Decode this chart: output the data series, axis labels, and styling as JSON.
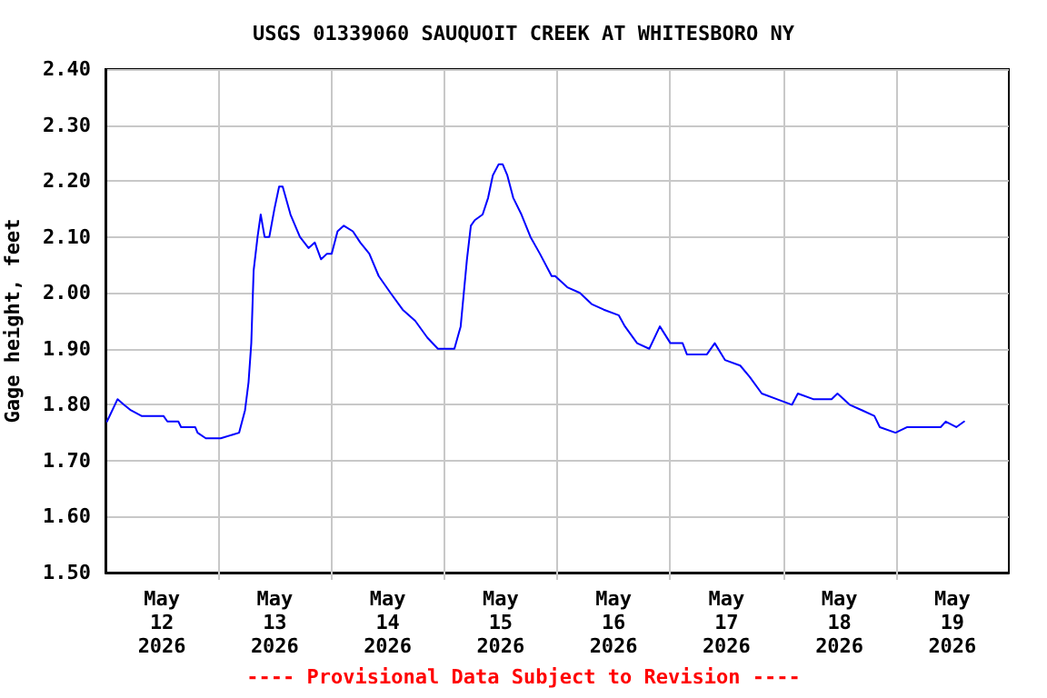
{
  "chart_data": {
    "type": "line",
    "title": "USGS 01339060 SAUQUOIT CREEK AT WHITESBORO NY",
    "ylabel": "Gage height, feet",
    "annotations": [
      "---- Provisional Data Subject to Revision ----"
    ],
    "xlim": [
      "2026-05-12T00:00",
      "2026-05-20T00:00"
    ],
    "xticks": [
      {
        "value": "2026-05-12T12:00",
        "label": "May\n12\n2026"
      },
      {
        "value": "2026-05-13T00:00",
        "label": null
      },
      {
        "value": "2026-05-13T12:00",
        "label": "May\n13\n2026"
      },
      {
        "value": "2026-05-14T00:00",
        "label": null
      },
      {
        "value": "2026-05-14T12:00",
        "label": "May\n14\n2026"
      },
      {
        "value": "2026-05-15T00:00",
        "label": null
      },
      {
        "value": "2026-05-15T12:00",
        "label": "May\n15\n2026"
      },
      {
        "value": "2026-05-16T00:00",
        "label": null
      },
      {
        "value": "2026-05-16T12:00",
        "label": "May\n16\n2026"
      },
      {
        "value": "2026-05-17T00:00",
        "label": null
      },
      {
        "value": "2026-05-17T12:00",
        "label": "May\n17\n2026"
      },
      {
        "value": "2026-05-18T00:00",
        "label": null
      },
      {
        "value": "2026-05-18T12:00",
        "label": "May\n18\n2026"
      },
      {
        "value": "2026-05-19T00:00",
        "label": null
      },
      {
        "value": "2026-05-19T12:00",
        "label": "May\n19\n2026"
      }
    ],
    "ylim": [
      1.5,
      2.4
    ],
    "yticks": [
      {
        "value": 1.5,
        "label": "1.50"
      },
      {
        "value": 1.6,
        "label": "1.60"
      },
      {
        "value": 1.7,
        "label": "1.70"
      },
      {
        "value": 1.8,
        "label": "1.80"
      },
      {
        "value": 1.9,
        "label": "1.90"
      },
      {
        "value": 2.0,
        "label": "2.00"
      },
      {
        "value": 2.1,
        "label": "2.10"
      },
      {
        "value": 2.2,
        "label": "2.20"
      },
      {
        "value": 2.3,
        "label": "2.30"
      },
      {
        "value": 2.4,
        "label": "2.40"
      }
    ],
    "grid": true,
    "marker": "none",
    "line_style": "solid",
    "series": [
      {
        "color": "#0000ff",
        "x": [
          "2026-05-12T00:20",
          "2026-05-12T02:35",
          "2026-05-12T03:55",
          "2026-05-12T05:25",
          "2026-05-12T07:40",
          "2026-05-12T12:20",
          "2026-05-12T13:10",
          "2026-05-12T15:30",
          "2026-05-12T16:05",
          "2026-05-12T19:05",
          "2026-05-12T19:35",
          "2026-05-12T21:20",
          "2026-05-13T00:30",
          "2026-05-13T04:25",
          "2026-05-13T05:40",
          "2026-05-13T06:25",
          "2026-05-13T07:00",
          "2026-05-13T07:30",
          "2026-05-13T08:20",
          "2026-05-13T09:00",
          "2026-05-13T09:50",
          "2026-05-13T10:50",
          "2026-05-13T11:55",
          "2026-05-13T12:55",
          "2026-05-13T13:40",
          "2026-05-13T15:20",
          "2026-05-13T17:20",
          "2026-05-13T19:10",
          "2026-05-13T20:30",
          "2026-05-13T21:50",
          "2026-05-13T23:05",
          "2026-05-14T00:05",
          "2026-05-14T01:20",
          "2026-05-14T02:40",
          "2026-05-14T04:35",
          "2026-05-14T06:10",
          "2026-05-14T08:05",
          "2026-05-14T10:05",
          "2026-05-14T12:35",
          "2026-05-14T15:10",
          "2026-05-14T17:50",
          "2026-05-14T20:25",
          "2026-05-14T22:40",
          "2026-05-15T02:10",
          "2026-05-15T03:30",
          "2026-05-15T04:50",
          "2026-05-15T05:40",
          "2026-05-15T06:30",
          "2026-05-15T08:10",
          "2026-05-15T09:20",
          "2026-05-15T10:20",
          "2026-05-15T11:35",
          "2026-05-15T12:25",
          "2026-05-15T13:25",
          "2026-05-15T14:40",
          "2026-05-15T16:25",
          "2026-05-15T18:20",
          "2026-05-15T20:20",
          "2026-05-15T22:50",
          "2026-05-15T23:35",
          "2026-05-16T02:10",
          "2026-05-16T04:50",
          "2026-05-16T07:20",
          "2026-05-16T09:55",
          "2026-05-16T13:05",
          "2026-05-16T14:25",
          "2026-05-16T17:00",
          "2026-05-16T19:35",
          "2026-05-16T21:50",
          "2026-05-17T00:05",
          "2026-05-17T02:40",
          "2026-05-17T03:35",
          "2026-05-17T07:50",
          "2026-05-17T09:30",
          "2026-05-17T11:40",
          "2026-05-17T14:55",
          "2026-05-17T16:55",
          "2026-05-17T19:30",
          "2026-05-17T22:40",
          "2026-05-18T01:55",
          "2026-05-18T03:10",
          "2026-05-18T06:25",
          "2026-05-18T10:20",
          "2026-05-18T11:35",
          "2026-05-18T12:55",
          "2026-05-18T14:10",
          "2026-05-18T16:50",
          "2026-05-18T19:25",
          "2026-05-18T20:35",
          "2026-05-18T23:55",
          "2026-05-19T02:25",
          "2026-05-19T09:30",
          "2026-05-19T10:35",
          "2026-05-19T12:50",
          "2026-05-19T14:30"
        ],
        "values": [
          1.77,
          1.81,
          1.8,
          1.79,
          1.78,
          1.78,
          1.77,
          1.77,
          1.76,
          1.76,
          1.75,
          1.74,
          1.74,
          1.75,
          1.79,
          1.84,
          1.91,
          2.04,
          2.1,
          2.14,
          2.1,
          2.1,
          2.15,
          2.19,
          2.19,
          2.14,
          2.1,
          2.08,
          2.09,
          2.06,
          2.07,
          2.07,
          2.11,
          2.12,
          2.11,
          2.09,
          2.07,
          2.03,
          2.0,
          1.97,
          1.95,
          1.92,
          1.9,
          1.9,
          1.94,
          2.06,
          2.12,
          2.13,
          2.14,
          2.17,
          2.21,
          2.23,
          2.23,
          2.21,
          2.17,
          2.14,
          2.1,
          2.07,
          2.03,
          2.03,
          2.01,
          2.0,
          1.98,
          1.97,
          1.96,
          1.94,
          1.91,
          1.9,
          1.94,
          1.91,
          1.91,
          1.89,
          1.89,
          1.91,
          1.88,
          1.87,
          1.85,
          1.82,
          1.81,
          1.8,
          1.82,
          1.81,
          1.81,
          1.82,
          1.81,
          1.8,
          1.79,
          1.78,
          1.76,
          1.75,
          1.76,
          1.76,
          1.77,
          1.76,
          1.77
        ]
      }
    ]
  }
}
